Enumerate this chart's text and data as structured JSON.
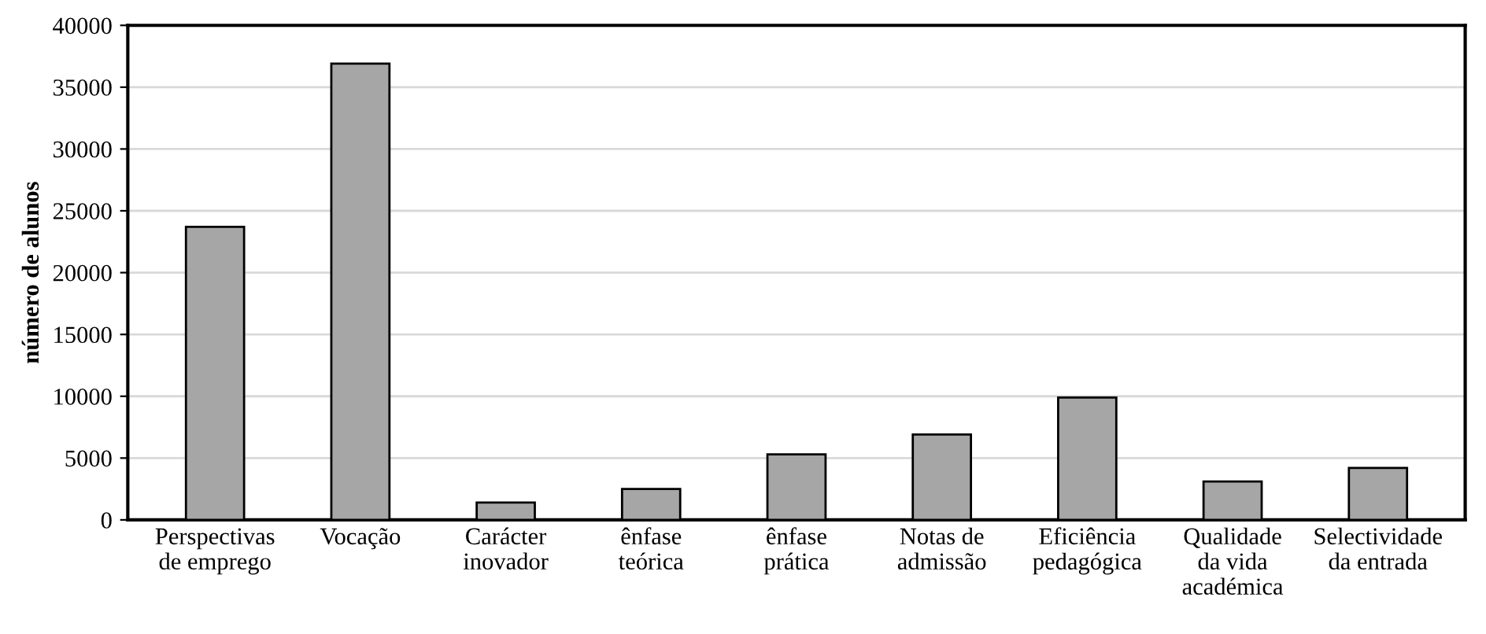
{
  "chart_data": {
    "type": "bar",
    "ylabel": "número de alunos",
    "categories": [
      "Perspectivas\nde emprego",
      "Vocação",
      "Carácter\ninovador",
      "ênfase\nteórica",
      "ênfase\nprática",
      "Notas de\nadmissão",
      "Eficiência\npedagógica",
      "Qualidade\nda vida\nacadémica",
      "Selectividade\nda entrada"
    ],
    "values": [
      23700,
      36900,
      1400,
      2500,
      5300,
      6900,
      9900,
      3100,
      4200
    ],
    "color": "#a6a6a6",
    "ylim": [
      0,
      40000
    ],
    "yticks": [
      0,
      5000,
      10000,
      15000,
      20000,
      25000,
      30000,
      35000,
      40000
    ],
    "grid": "y"
  }
}
